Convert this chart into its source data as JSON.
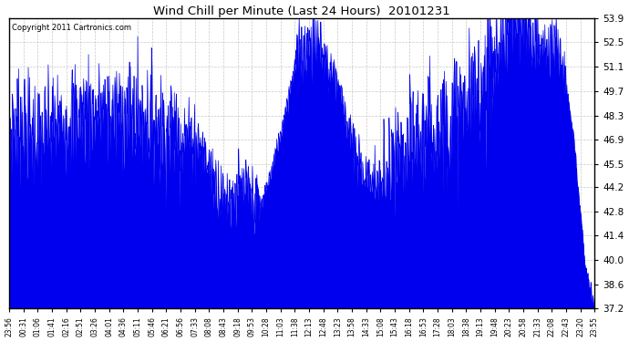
{
  "title": "Wind Chill per Minute (Last 24 Hours)  20101231",
  "copyright": "Copyright 2011 Cartronics.com",
  "line_color": "#0000EE",
  "bg_color": "#ffffff",
  "grid_color": "#bbbbbb",
  "yticks": [
    37.2,
    38.6,
    40.0,
    41.4,
    42.8,
    44.2,
    45.5,
    46.9,
    48.3,
    49.7,
    51.1,
    52.5,
    53.9
  ],
  "ymin": 37.2,
  "ymax": 53.9,
  "xtick_labels": [
    "23:56",
    "00:31",
    "01:06",
    "01:41",
    "02:16",
    "02:51",
    "03:26",
    "04:01",
    "04:36",
    "05:11",
    "05:46",
    "06:21",
    "06:56",
    "07:33",
    "08:08",
    "08:43",
    "09:18",
    "09:53",
    "10:28",
    "11:03",
    "11:38",
    "12:13",
    "12:48",
    "13:23",
    "13:58",
    "14:33",
    "15:08",
    "15:43",
    "16:18",
    "16:53",
    "17:28",
    "18:03",
    "18:38",
    "19:13",
    "19:48",
    "20:23",
    "20:58",
    "21:33",
    "22:08",
    "22:43",
    "23:20",
    "23:55"
  ]
}
